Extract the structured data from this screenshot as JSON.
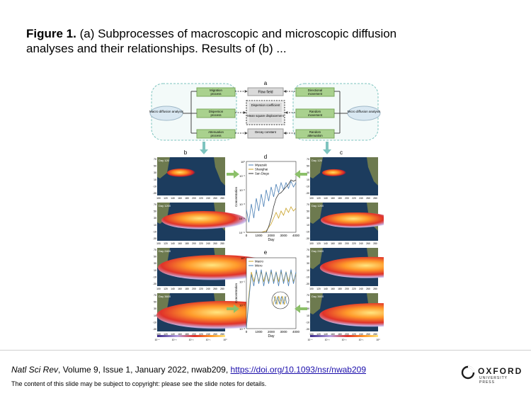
{
  "slide": {
    "title_bold": "Figure 1.",
    "title_rest": " (a) Subprocesses of macroscopic and microscopic diffusion analyses and their relationships. Results of (b) ...",
    "citation_journal": "Natl Sci Rev",
    "citation_details": ", Volume 9, Issue 1, January 2022, nwab209, ",
    "citation_link": "https://doi.org/10.1093/nsr/nwab209",
    "copyright": "The content of this slide may be subject to copyright: please see the slide notes for details.",
    "logo_word": "OXFORD",
    "logo_sub": "UNIVERSITY PRESS"
  },
  "figure": {
    "panel_letters": [
      "a",
      "b",
      "c",
      "d",
      "e"
    ],
    "macro_label": "Macro diffusion analysis",
    "micro_label": "Micro diffusion analysis",
    "macro_processes": [
      "Migration process",
      "Dispersion process",
      "Attenuation process"
    ],
    "center_boxes": [
      "Flow field",
      "Dispersion coefficient",
      "Mean square displacement",
      "Decay constant"
    ],
    "micro_processes": [
      "Directional movement",
      "Random movement",
      "Random attenuation"
    ],
    "map_days": [
      "Day 120",
      "Day 1200",
      "Day 2400",
      "Day 3600"
    ],
    "lat_ticks": [
      "70",
      "50",
      "30",
      "10",
      "-10",
      "-30"
    ],
    "lon_ticks": [
      "100",
      "120",
      "140",
      "160",
      "180",
      "200",
      "220",
      "240",
      "260",
      "280"
    ],
    "colorbar_ticks": [
      "10⁻⁴",
      "10⁻³",
      "10⁻²",
      "10⁻¹",
      "10⁰"
    ],
    "colors": {
      "green": "#a9d18e",
      "gray": "#d9d9d9",
      "teal": "#7ec4bf",
      "ocean": "#1c3c5e",
      "land": "#6d7a4f"
    }
  },
  "chart_data": [
    {
      "type": "line",
      "panel": "d",
      "xlabel": "Day",
      "ylabel": "Concentration",
      "xlim": [
        0,
        4000
      ],
      "ylim_log10": [
        -5,
        0
      ],
      "x_ticks": [
        "0",
        "1000",
        "2000",
        "3000",
        "4000"
      ],
      "y_ticks": [
        "10⁰",
        "10⁻¹",
        "10⁻²",
        "10⁻³",
        "10⁻⁴",
        "10⁻⁵"
      ],
      "legend_position": "top-left",
      "series": [
        {
          "name": "Miyazaki",
          "color": "#4a7fb5",
          "x": [
            0,
            200,
            400,
            600,
            800,
            1000,
            1200,
            1400,
            1600,
            1800,
            2000,
            2200,
            2400,
            2600,
            2800,
            3000,
            3200,
            3400,
            3600,
            3800,
            4000
          ],
          "log10_y": [
            -3.4,
            -4.3,
            -3.0,
            -4.0,
            -2.6,
            -3.5,
            -2.3,
            -3.2,
            -2.0,
            -2.8,
            -1.8,
            -2.5,
            -1.6,
            -2.2,
            -1.5,
            -2.0,
            -1.5,
            -1.9,
            -1.4,
            -1.8,
            -1.5
          ]
        },
        {
          "name": "Shanghai",
          "color": "#c9a227",
          "x": [
            0,
            400,
            800,
            1200,
            1600,
            2000,
            2200,
            2400,
            2600,
            2800,
            3000,
            3200,
            3400,
            3600,
            3800,
            4000
          ],
          "log10_y": [
            -5.0,
            -5.0,
            -5.0,
            -5.0,
            -4.9,
            -4.4,
            -4.0,
            -3.6,
            -4.0,
            -3.5,
            -3.8,
            -3.3,
            -3.6,
            -3.2,
            -3.5,
            -3.3
          ]
        },
        {
          "name": "San Diego",
          "color": "#3a3a3a",
          "x": [
            0,
            800,
            1600,
            1800,
            2000,
            2200,
            2400,
            2600,
            2800,
            3000,
            3200,
            3400,
            3600,
            3800,
            4000
          ],
          "log10_y": [
            -5.0,
            -5.0,
            -5.0,
            -4.6,
            -4.0,
            -3.2,
            -2.6,
            -2.3,
            -2.2,
            -2.0,
            -1.8,
            -1.6,
            -1.3,
            -1.4,
            -1.3
          ]
        }
      ]
    },
    {
      "type": "line",
      "panel": "e",
      "xlabel": "Day",
      "ylabel": "Concentration",
      "xlim": [
        0,
        4000
      ],
      "ylim_log10": [
        -3,
        0
      ],
      "x_ticks": [
        "0",
        "1000",
        "2000",
        "3000",
        "4000"
      ],
      "y_ticks": [
        "10⁰",
        "10⁻¹",
        "10⁻²",
        "10⁻³"
      ],
      "legend_position": "top-left",
      "series": [
        {
          "name": "Macro",
          "color": "#c9a227",
          "x": [
            0,
            200,
            400,
            600,
            800,
            1000,
            1200,
            1400,
            1600,
            1800,
            2000,
            2200,
            2400,
            2600,
            2800,
            3000,
            3200,
            3400,
            3600,
            3800,
            4000
          ],
          "log10_y": [
            -3.0,
            -1.6,
            -0.6,
            -1.0,
            -0.6,
            -1.0,
            -0.6,
            -1.0,
            -0.6,
            -1.0,
            -0.6,
            -1.0,
            -0.6,
            -1.0,
            -0.6,
            -1.0,
            -0.6,
            -1.0,
            -0.6,
            -1.0,
            -0.7
          ]
        },
        {
          "name": "Micro",
          "color": "#4a7fb5",
          "x": [
            0,
            200,
            400,
            600,
            800,
            1000,
            1200,
            1400,
            1600,
            1800,
            2000,
            2200,
            2400,
            2600,
            2800,
            3000,
            3200,
            3400,
            3600,
            3800,
            4000
          ],
          "log10_y": [
            -3.0,
            -1.8,
            -0.7,
            -1.2,
            -0.5,
            -1.1,
            -0.5,
            -1.2,
            -0.6,
            -1.1,
            -0.5,
            -1.1,
            -0.6,
            -1.2,
            -0.5,
            -1.1,
            -0.6,
            -1.2,
            -0.5,
            -1.1,
            -0.6
          ]
        }
      ]
    }
  ]
}
